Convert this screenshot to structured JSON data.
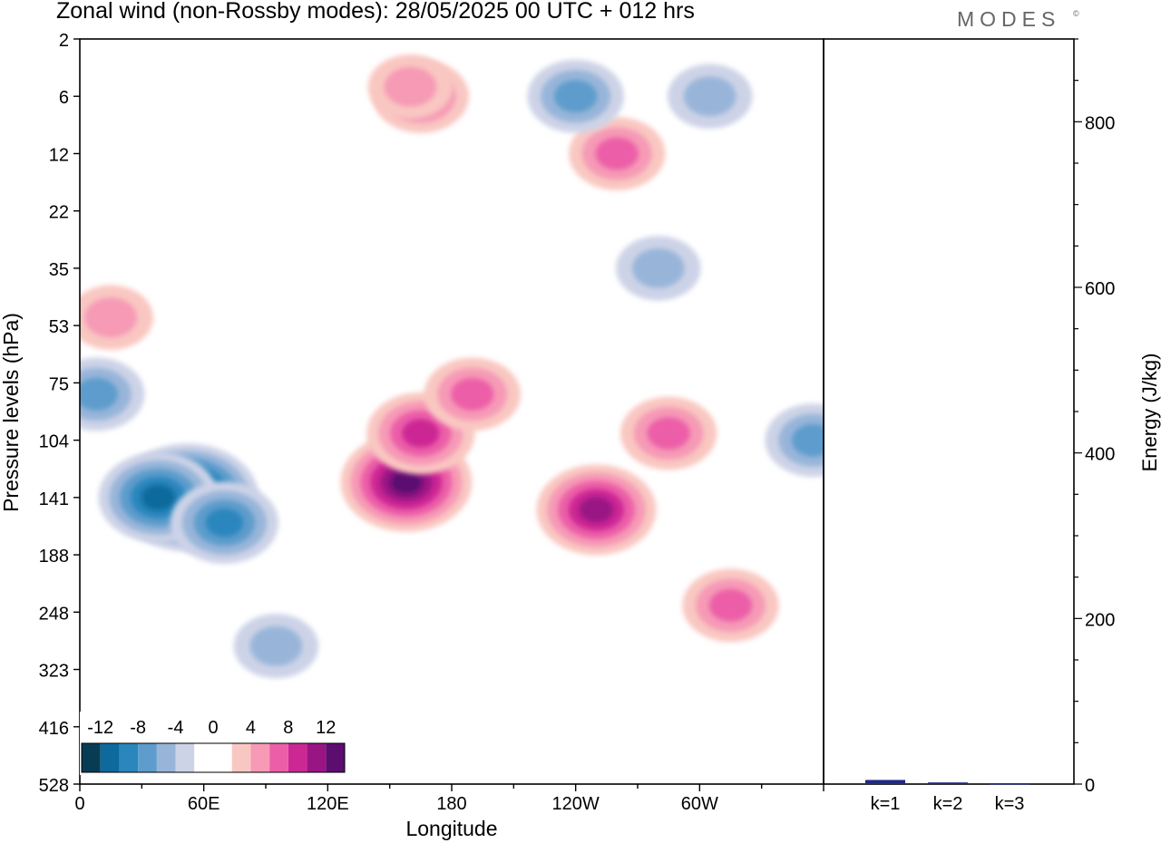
{
  "title": "Zonal wind (non-Rossby modes):  28/05/2025  00 UTC  + 012 hrs",
  "logo": "MODES",
  "logo_mark": "©",
  "colors": {
    "neg": [
      "#083c55",
      "#0e6a9c",
      "#2a86bd",
      "#5d9ccc",
      "#98b5d9",
      "#cdd3e7"
    ],
    "pos": [
      "#f9c7c1",
      "#f69ab6",
      "#ec5fa8",
      "#cc2894",
      "#9a1584",
      "#5c0d70"
    ],
    "frame": "#000000",
    "bar": "#1f2a84"
  },
  "chart_data": [
    {
      "type": "heatmap",
      "title": "Zonal wind (non-Rossby modes):  28/05/2025  00 UTC  + 012 hrs",
      "xlabel": "Longitude",
      "ylabel": "Pressure levels (hPa)",
      "x_ticks": [
        "0",
        "60E",
        "120E",
        "180",
        "120W",
        "60W"
      ],
      "y_ticks": [
        "2",
        "6",
        "12",
        "22",
        "35",
        "53",
        "75",
        "104",
        "141",
        "188",
        "248",
        "323",
        "416",
        "528"
      ],
      "colorbar": {
        "labels": [
          "-12",
          "-8",
          "-4",
          "0",
          "4",
          "8",
          "12"
        ],
        "levels": [
          -14,
          -12,
          -10,
          -8,
          -6,
          -4,
          -2,
          2,
          4,
          6,
          8,
          10,
          12,
          14
        ]
      },
      "features": [
        {
          "lon": 52,
          "level": 141,
          "value": -14
        },
        {
          "lon": 38,
          "level": 141,
          "value": -10
        },
        {
          "lon": 70,
          "level": 160,
          "value": -8
        },
        {
          "lon": 8,
          "level": 80,
          "value": -6
        },
        {
          "lon": 95,
          "level": 290,
          "value": -4
        },
        {
          "lon": 158,
          "level": 130,
          "value": 12
        },
        {
          "lon": 165,
          "level": 100,
          "value": 8
        },
        {
          "lon": 250,
          "level": 150,
          "value": 10
        },
        {
          "lon": 190,
          "level": 80,
          "value": 6
        },
        {
          "lon": 285,
          "level": 100,
          "value": 6
        },
        {
          "lon": 315,
          "level": 240,
          "value": 6
        },
        {
          "lon": 260,
          "level": 12,
          "value": 6
        },
        {
          "lon": 165,
          "level": 6,
          "value": 6
        },
        {
          "lon": 240,
          "level": 6,
          "value": -6
        },
        {
          "lon": 305,
          "level": 6,
          "value": -4
        },
        {
          "lon": 280,
          "level": 35,
          "value": -4
        },
        {
          "lon": 15,
          "level": 50,
          "value": 4
        },
        {
          "lon": 160,
          "level": 5,
          "value": 4
        },
        {
          "lon": 355,
          "level": 104,
          "value": -6
        }
      ]
    },
    {
      "type": "bar",
      "categories": [
        "k=1",
        "k=2",
        "k=3"
      ],
      "values": [
        5,
        2,
        1
      ],
      "ylabel": "Energy (J/kg)",
      "ylim": [
        0,
        900
      ],
      "y_ticks": [
        0,
        200,
        400,
        600,
        800
      ]
    }
  ]
}
